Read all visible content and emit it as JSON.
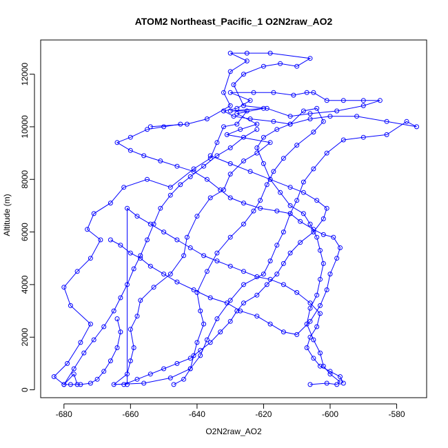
{
  "chart_data": {
    "type": "line",
    "title": "ATOM2 Northeast_Pacific_1 O2N2raw_AO2",
    "xlabel": "O2N2raw_AO2",
    "ylabel": "Altitude (m)",
    "xlim": [
      -687,
      -571
    ],
    "ylim": [
      -300,
      13300
    ],
    "x_ticks": [
      -680,
      -660,
      -640,
      -620,
      -600,
      -580
    ],
    "y_ticks": [
      0,
      2000,
      4000,
      6000,
      8000,
      10000,
      12000
    ],
    "grid": false,
    "markers": "open-circle",
    "series_color": "#0000ff",
    "series": [
      {
        "points": [
          [
            -676,
            200
          ],
          [
            -677,
            600
          ],
          [
            -680,
            200
          ],
          [
            -683,
            500
          ],
          [
            -679,
            1000
          ],
          [
            -675,
            1800
          ],
          [
            -672,
            2500
          ],
          [
            -678,
            3200
          ],
          [
            -680,
            3900
          ],
          [
            -676,
            4500
          ],
          [
            -672,
            5000
          ],
          [
            -669,
            5700
          ],
          [
            -673,
            6100
          ],
          [
            -671,
            6700
          ],
          [
            -666,
            7100
          ],
          [
            -662,
            7700
          ],
          [
            -655,
            8000
          ],
          [
            -648,
            7700
          ],
          [
            -641,
            8400
          ],
          [
            -636,
            8800
          ],
          [
            -634,
            9400
          ],
          [
            -632,
            10000
          ],
          [
            -628,
            10100
          ],
          [
            -625,
            10600
          ],
          [
            -630,
            10600
          ],
          [
            -620,
            10700
          ],
          [
            -628,
            10500
          ],
          [
            -622,
            10100
          ],
          [
            -627,
            9900
          ],
          [
            -631,
            9700
          ],
          [
            -618,
            9400
          ],
          [
            -622,
            9000
          ],
          [
            -626,
            8700
          ],
          [
            -630,
            8200
          ],
          [
            -632,
            7600
          ],
          [
            -636,
            7300
          ],
          [
            -640,
            6600
          ],
          [
            -643,
            5800
          ],
          [
            -644,
            5100
          ],
          [
            -648,
            4400
          ],
          [
            -653,
            3900
          ],
          [
            -657,
            3400
          ],
          [
            -658,
            2800
          ],
          [
            -660,
            2300
          ],
          [
            -659,
            1600
          ],
          [
            -660,
            1100
          ],
          [
            -661,
            600
          ],
          [
            -665,
            200
          ],
          [
            -656,
            250
          ],
          [
            -648,
            450
          ],
          [
            -642,
            800
          ],
          [
            -639,
            1300
          ],
          [
            -637,
            1900
          ],
          [
            -634,
            2700
          ],
          [
            -630,
            3400
          ],
          [
            -626,
            4000
          ],
          [
            -620,
            4400
          ],
          [
            -618,
            4900
          ],
          [
            -616,
            5500
          ],
          [
            -614,
            6000
          ],
          [
            -612,
            6700
          ],
          [
            -610,
            7200
          ],
          [
            -608,
            7900
          ],
          [
            -605,
            8400
          ],
          [
            -601,
            9000
          ],
          [
            -596,
            9500
          ],
          [
            -590,
            9600
          ],
          [
            -583,
            9700
          ],
          [
            -577,
            10200
          ],
          [
            -574,
            10000
          ],
          [
            -583,
            10200
          ],
          [
            -592,
            10400
          ],
          [
            -600,
            10400
          ],
          [
            -606,
            10300
          ],
          [
            -612,
            10100
          ],
          [
            -617,
            10200
          ],
          [
            -624,
            10300
          ],
          [
            -629,
            10400
          ],
          [
            -632,
            10600
          ],
          [
            -628,
            10700
          ],
          [
            -624,
            11000
          ],
          [
            -630,
            11300
          ],
          [
            -623,
            11300
          ],
          [
            -617,
            11300
          ],
          [
            -611,
            11200
          ],
          [
            -607,
            11300
          ],
          [
            -605,
            11300
          ],
          [
            -601,
            11000
          ],
          [
            -596,
            11000
          ],
          [
            -590,
            11000
          ],
          [
            -585,
            11000
          ],
          [
            -590,
            10800
          ],
          [
            -598,
            10600
          ],
          [
            -606,
            10500
          ],
          [
            -612,
            10400
          ],
          [
            -619,
            10700
          ],
          [
            -626,
            10800
          ],
          [
            -629,
            11600
          ],
          [
            -626,
            12000
          ],
          [
            -620,
            12300
          ],
          [
            -615,
            12400
          ],
          [
            -610,
            12300
          ],
          [
            -606,
            12600
          ],
          [
            -618,
            12800
          ],
          [
            -625,
            12800
          ],
          [
            -630,
            12800
          ],
          [
            -625,
            12500
          ],
          [
            -630,
            12100
          ],
          [
            -632,
            11300
          ],
          [
            -630,
            10800
          ],
          [
            -637,
            10300
          ],
          [
            -643,
            10100
          ],
          [
            -654,
            10000
          ]
        ]
      },
      {
        "points": [
          [
            -606,
            200
          ],
          [
            -601,
            250
          ],
          [
            -598,
            200
          ],
          [
            -597,
            300
          ],
          [
            -600,
            600
          ],
          [
            -602,
            900
          ],
          [
            -603,
            1400
          ],
          [
            -605,
            1900
          ],
          [
            -607,
            2500
          ],
          [
            -606,
            3100
          ],
          [
            -604,
            3600
          ],
          [
            -603,
            4200
          ],
          [
            -602,
            4800
          ],
          [
            -603,
            5300
          ],
          [
            -604,
            5800
          ],
          [
            -606,
            6300
          ],
          [
            -608,
            6700
          ],
          [
            -612,
            7000
          ],
          [
            -615,
            7500
          ],
          [
            -618,
            8000
          ],
          [
            -620,
            8600
          ],
          [
            -622,
            9200
          ],
          [
            -620,
            9600
          ],
          [
            -616,
            9900
          ],
          [
            -612,
            10100
          ],
          [
            -608,
            10600
          ],
          [
            -604,
            10700
          ],
          [
            -602,
            10200
          ],
          [
            -605,
            9800
          ],
          [
            -610,
            9300
          ],
          [
            -614,
            8800
          ],
          [
            -617,
            8300
          ],
          [
            -619,
            7800
          ],
          [
            -621,
            7200
          ],
          [
            -623,
            6800
          ],
          [
            -626,
            6300
          ],
          [
            -630,
            5800
          ],
          [
            -634,
            5200
          ],
          [
            -637,
            4500
          ],
          [
            -640,
            3700
          ],
          [
            -639,
            3000
          ],
          [
            -638,
            2500
          ],
          [
            -640,
            1800
          ],
          [
            -641,
            1300
          ],
          [
            -642,
            800
          ],
          [
            -644,
            400
          ],
          [
            -647,
            200
          ]
        ]
      },
      {
        "points": [
          [
            -666,
            5700
          ],
          [
            -663,
            5500
          ],
          [
            -660,
            5200
          ],
          [
            -657,
            5000
          ],
          [
            -654,
            4700
          ],
          [
            -650,
            4400
          ],
          [
            -646,
            4100
          ],
          [
            -641,
            3800
          ],
          [
            -636,
            3500
          ],
          [
            -631,
            3300
          ],
          [
            -627,
            3000
          ],
          [
            -622,
            2800
          ],
          [
            -618,
            2500
          ],
          [
            -614,
            2200
          ],
          [
            -610,
            2100
          ],
          [
            -606,
            2600
          ],
          [
            -603,
            3200
          ],
          [
            -601,
            3800
          ],
          [
            -600,
            4400
          ],
          [
            -598,
            5000
          ],
          [
            -597,
            5400
          ],
          [
            -599,
            5800
          ],
          [
            -602,
            5900
          ],
          [
            -605,
            6100
          ],
          [
            -609,
            6400
          ],
          [
            -612,
            6700
          ],
          [
            -616,
            6800
          ],
          [
            -621,
            6900
          ],
          [
            -626,
            7100
          ],
          [
            -630,
            7300
          ],
          [
            -633,
            7600
          ],
          [
            -637,
            8000
          ],
          [
            -641,
            8300
          ],
          [
            -646,
            8500
          ],
          [
            -651,
            8700
          ],
          [
            -656,
            8900
          ],
          [
            -660,
            9100
          ],
          [
            -664,
            9400
          ],
          [
            -660,
            9600
          ],
          [
            -655,
            9900
          ],
          [
            -650,
            10000
          ],
          [
            -645,
            10100
          ]
        ]
      },
      {
        "points": [
          [
            -664,
            2700
          ],
          [
            -663,
            2200
          ],
          [
            -664,
            1600
          ],
          [
            -666,
            1100
          ],
          [
            -668,
            700
          ],
          [
            -670,
            400
          ],
          [
            -672,
            250
          ],
          [
            -675,
            200
          ],
          [
            -678,
            200
          ],
          [
            -680,
            200
          ],
          [
            -677,
            800
          ],
          [
            -674,
            1400
          ],
          [
            -671,
            1900
          ],
          [
            -668,
            2400
          ],
          [
            -665,
            3000
          ],
          [
            -663,
            3500
          ],
          [
            -661,
            4000
          ],
          [
            -659,
            4600
          ],
          [
            -657,
            5100
          ],
          [
            -655,
            5700
          ],
          [
            -653,
            6300
          ],
          [
            -651,
            6900
          ],
          [
            -648,
            7400
          ],
          [
            -645,
            7800
          ],
          [
            -642,
            8100
          ],
          [
            -638,
            8500
          ],
          [
            -634,
            8900
          ],
          [
            -630,
            9200
          ],
          [
            -626,
            9600
          ],
          [
            -622,
            9900
          ]
        ]
      },
      {
        "points": [
          [
            -661,
            200
          ],
          [
            -661,
            6900
          ],
          [
            -658,
            6600
          ],
          [
            -654,
            6300
          ],
          [
            -650,
            6000
          ],
          [
            -646,
            5700
          ],
          [
            -642,
            5400
          ],
          [
            -638,
            5100
          ],
          [
            -634,
            4900
          ],
          [
            -630,
            4700
          ],
          [
            -626,
            4500
          ],
          [
            -622,
            4300
          ],
          [
            -618,
            4200
          ],
          [
            -614,
            4000
          ],
          [
            -610,
            3700
          ],
          [
            -606,
            3300
          ],
          [
            -603,
            2900
          ],
          [
            -604,
            2400
          ],
          [
            -606,
            2000
          ],
          [
            -607,
            1600
          ],
          [
            -605,
            1200
          ],
          [
            -603,
            900
          ],
          [
            -600,
            700
          ],
          [
            -597,
            500
          ],
          [
            -596,
            250
          ]
        ]
      },
      {
        "points": [
          [
            -636,
            8900
          ],
          [
            -630,
            8600
          ],
          [
            -624,
            8300
          ],
          [
            -618,
            8000
          ],
          [
            -612,
            7700
          ],
          [
            -608,
            7500
          ],
          [
            -604,
            7200
          ],
          [
            -601,
            6900
          ],
          [
            -602,
            6500
          ],
          [
            -605,
            6000
          ],
          [
            -609,
            5600
          ],
          [
            -612,
            5200
          ],
          [
            -614,
            4800
          ],
          [
            -616,
            4400
          ],
          [
            -619,
            4000
          ],
          [
            -622,
            3600
          ],
          [
            -626,
            3300
          ],
          [
            -628,
            3000
          ],
          [
            -630,
            2600
          ],
          [
            -633,
            2200
          ],
          [
            -636,
            1800
          ],
          [
            -639,
            1500
          ],
          [
            -642,
            1200
          ],
          [
            -646,
            1000
          ],
          [
            -650,
            800
          ],
          [
            -654,
            600
          ],
          [
            -658,
            400
          ],
          [
            -662,
            200
          ]
        ]
      }
    ]
  }
}
